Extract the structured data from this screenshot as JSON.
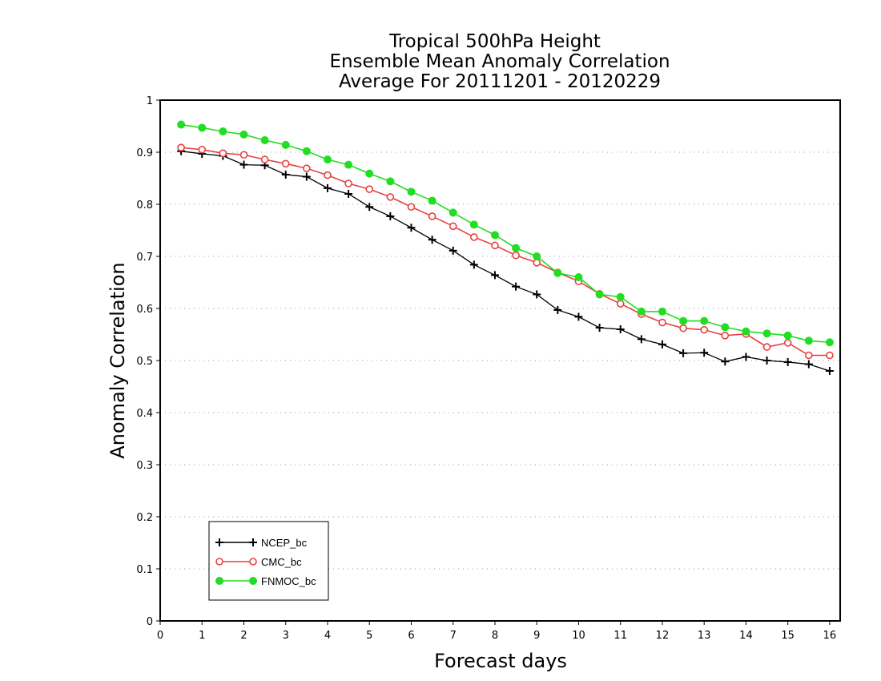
{
  "chart_data": {
    "type": "line",
    "title_lines": [
      "Tropical 500hPa Height",
      "Ensemble Mean Anomaly Correlation",
      "Average For 20111201 - 20120229"
    ],
    "xlabel": "Forecast days",
    "ylabel": "Anomaly Correlation",
    "xlim": [
      0,
      16.25
    ],
    "ylim": [
      0,
      1
    ],
    "x_ticks": [
      "0",
      "1",
      "2",
      "3",
      "4",
      "5",
      "6",
      "7",
      "8",
      "9",
      "10",
      "11",
      "12",
      "13",
      "14",
      "15",
      "16"
    ],
    "y_ticks": [
      "0",
      "0.1",
      "0.2",
      "0.3",
      "0.4",
      "0.5",
      "0.6",
      "0.7",
      "0.8",
      "0.9",
      "1"
    ],
    "grid": "horizontal dotted",
    "legend_position": "bottom-left",
    "x": [
      0.5,
      1,
      1.5,
      2,
      2.5,
      3,
      3.5,
      4,
      4.5,
      5,
      5.5,
      6,
      6.5,
      7,
      7.5,
      8,
      8.5,
      9,
      9.5,
      10,
      10.5,
      11,
      11.5,
      12,
      12.5,
      13,
      13.5,
      14,
      14.5,
      15,
      15.5,
      16
    ],
    "series": [
      {
        "name": "NCEP_bc",
        "color": "#000000",
        "marker": "plus",
        "values": [
          0.902,
          0.897,
          0.893,
          0.876,
          0.875,
          0.857,
          0.853,
          0.831,
          0.82,
          0.795,
          0.777,
          0.755,
          0.732,
          0.711,
          0.684,
          0.664,
          0.642,
          0.627,
          0.597,
          0.584,
          0.563,
          0.56,
          0.541,
          0.531,
          0.514,
          0.515,
          0.498,
          0.507,
          0.5,
          0.497,
          0.493,
          0.48
        ]
      },
      {
        "name": "CMC_bc",
        "color": "#e84040",
        "marker": "open-circle",
        "values": [
          0.909,
          0.905,
          0.898,
          0.895,
          0.886,
          0.878,
          0.869,
          0.856,
          0.84,
          0.829,
          0.814,
          0.795,
          0.777,
          0.758,
          0.737,
          0.721,
          0.702,
          0.688,
          0.669,
          0.652,
          0.628,
          0.609,
          0.589,
          0.573,
          0.562,
          0.559,
          0.548,
          0.551,
          0.526,
          0.534,
          0.51,
          0.51
        ]
      },
      {
        "name": "FNMOC_bc",
        "color": "#22dd22",
        "marker": "filled-circle",
        "values": [
          0.953,
          0.947,
          0.94,
          0.934,
          0.923,
          0.914,
          0.902,
          0.886,
          0.876,
          0.859,
          0.844,
          0.824,
          0.807,
          0.784,
          0.761,
          0.741,
          0.716,
          0.7,
          0.668,
          0.66,
          0.627,
          0.622,
          0.594,
          0.594,
          0.576,
          0.576,
          0.564,
          0.556,
          0.552,
          0.548,
          0.538,
          0.535
        ]
      }
    ]
  }
}
